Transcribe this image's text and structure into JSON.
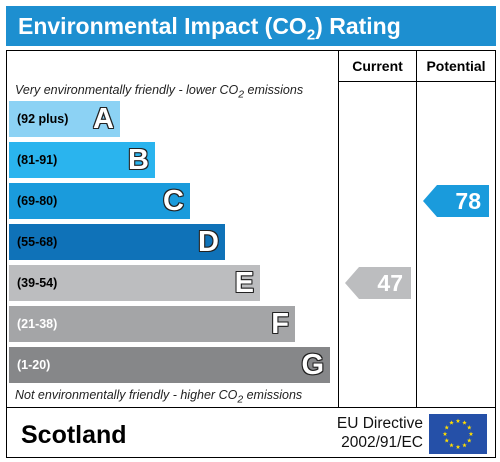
{
  "header": {
    "title_pre": "Environmental Impact (CO",
    "title_sub": "2",
    "title_post": ") Rating"
  },
  "columns": {
    "current": "Current",
    "potential": "Potential"
  },
  "captions": {
    "top_pre": "Very environmentally friendly - lower CO",
    "top_sub": "2",
    "top_post": " emissions",
    "bottom_pre": "Not environmentally friendly - higher CO",
    "bottom_sub": "2",
    "bottom_post": " emissions"
  },
  "chart_data": {
    "type": "bar",
    "categories": [
      "A",
      "B",
      "C",
      "D",
      "E",
      "F",
      "G"
    ],
    "bands": [
      {
        "letter": "A",
        "range": "(92 plus)",
        "color": "#8cd2f4",
        "text_color": "#000000"
      },
      {
        "letter": "B",
        "range": "(81-91)",
        "color": "#2ab4ee",
        "text_color": "#000000"
      },
      {
        "letter": "C",
        "range": "(69-80)",
        "color": "#1a9bdc",
        "text_color": "#000000"
      },
      {
        "letter": "D",
        "range": "(55-68)",
        "color": "#0f72b8",
        "text_color": "#000000"
      },
      {
        "letter": "E",
        "range": "(39-54)",
        "color": "#bcbdbf",
        "text_color": "#000000"
      },
      {
        "letter": "F",
        "range": "(21-38)",
        "color": "#a4a5a7",
        "text_color": "#ffffff"
      },
      {
        "letter": "G",
        "range": "(1-20)",
        "color": "#868789",
        "text_color": "#ffffff"
      }
    ],
    "current": {
      "value": 47,
      "band": "E",
      "color": "#bcbdbf"
    },
    "potential": {
      "value": 78,
      "band": "C",
      "color": "#1a9bdc"
    }
  },
  "footer": {
    "country": "Scotland",
    "directive_line1": "EU Directive",
    "directive_line2": "2002/91/EC"
  },
  "icons": {
    "flag": "eu-flag-icon"
  }
}
